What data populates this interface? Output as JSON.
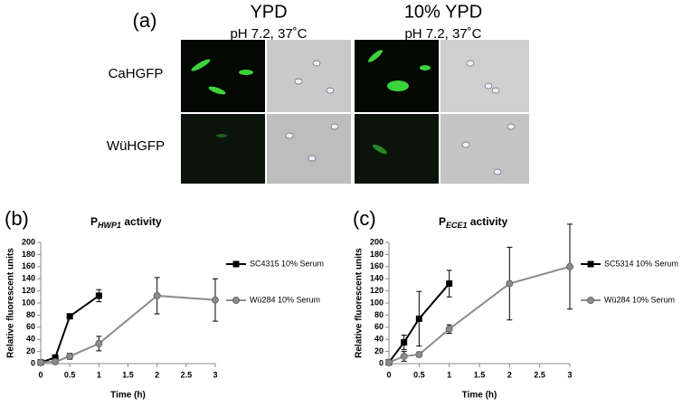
{
  "panel_a": {
    "label": "(a)",
    "columns": [
      {
        "title": "YPD",
        "subtitle": "pH 7.2, 37˚C"
      },
      {
        "title": "10% YPD",
        "subtitle": "pH 7.2, 37˚C"
      }
    ],
    "rows": [
      "CaHGFP",
      "WüHGFP"
    ]
  },
  "chart_data": [
    {
      "type": "line",
      "label": "(b)",
      "title": [
        "P",
        "HWP1",
        " activity"
      ],
      "x_label": "Time (h)",
      "y_label": "Relative fluorescent units",
      "xlim": [
        0,
        3
      ],
      "xticks": [
        0,
        0.5,
        1,
        1.5,
        2,
        2.5,
        3
      ],
      "ylim": [
        0,
        200
      ],
      "yticks": [
        0,
        20,
        40,
        60,
        80,
        100,
        120,
        140,
        160,
        180,
        200
      ],
      "series": [
        {
          "name": "SC4315 10% Serum",
          "color": "#000000",
          "marker": "square",
          "x": [
            0,
            0.25,
            0.5,
            1
          ],
          "values": [
            2,
            10,
            78,
            112
          ],
          "errors": [
            0,
            1,
            2,
            10
          ]
        },
        {
          "name": "Wü284 10% Serum",
          "color": "#8c8c8c",
          "marker": "circle",
          "x": [
            0,
            0.25,
            0.5,
            1,
            2,
            3
          ],
          "values": [
            2,
            3,
            12,
            33,
            112,
            105
          ],
          "errors": [
            0,
            1,
            5,
            12,
            30,
            35
          ]
        }
      ]
    },
    {
      "type": "line",
      "label": "(c)",
      "title": [
        "P",
        "ECE1",
        " activity"
      ],
      "x_label": "Time (h)",
      "y_label": "Relative fluorescent units",
      "xlim": [
        0,
        3
      ],
      "xticks": [
        0,
        0.5,
        1,
        1.5,
        2,
        2.5,
        3
      ],
      "ylim": [
        0,
        200
      ],
      "yticks": [
        0,
        20,
        40,
        60,
        80,
        100,
        120,
        140,
        160,
        180,
        200
      ],
      "series": [
        {
          "name": "SC5314 10% Serum",
          "color": "#000000",
          "marker": "square",
          "x": [
            0,
            0.25,
            0.5,
            1
          ],
          "values": [
            2,
            35,
            74,
            132
          ],
          "errors": [
            0,
            12,
            45,
            22
          ]
        },
        {
          "name": "Wü284 10% Serum",
          "color": "#8c8c8c",
          "marker": "circle",
          "x": [
            0,
            0.25,
            0.5,
            1,
            2,
            3
          ],
          "values": [
            2,
            12,
            15,
            57,
            132,
            160
          ],
          "errors": [
            0,
            8,
            4,
            7,
            60,
            70
          ]
        }
      ]
    }
  ]
}
